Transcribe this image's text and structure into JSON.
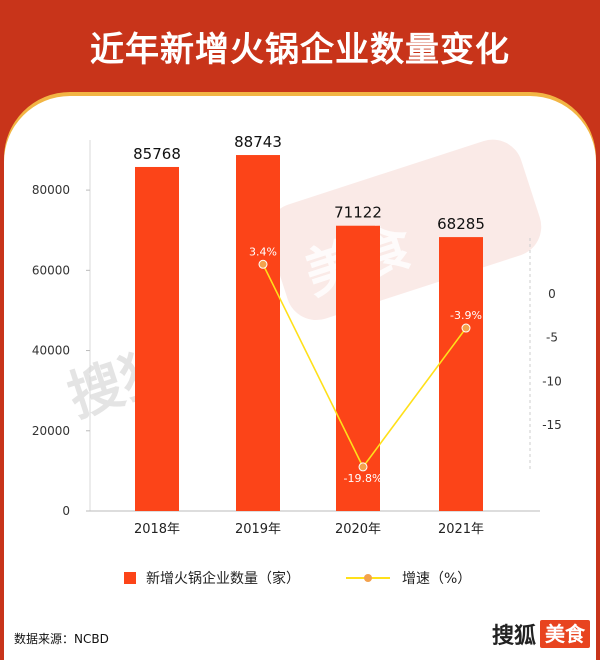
{
  "header": {
    "title": "近年新增火锅企业数量变化"
  },
  "source": "数据来源：NCBD",
  "logo": {
    "main": "搜狐",
    "box": "美食"
  },
  "colors": {
    "background": "#c8341a",
    "bar": "#fc4418",
    "line": "#ffe01a",
    "marker": "#f3a24d"
  },
  "chart_data": {
    "type": "bar",
    "categories": [
      "2018年",
      "2019年",
      "2020年",
      "2021年"
    ],
    "series": [
      {
        "name": "新增火锅企业数量（家）",
        "type": "bar",
        "axis": "left",
        "values": [
          85768,
          88743,
          71122,
          68285
        ],
        "labels": [
          "85768",
          "88743",
          "71122",
          "68285"
        ]
      },
      {
        "name": "增速（%）",
        "type": "line",
        "axis": "right",
        "values": [
          null,
          3.4,
          -19.8,
          -3.9
        ],
        "labels": [
          "",
          "3.4%",
          "-19.8%",
          "-3.9%"
        ]
      }
    ],
    "left_axis": {
      "ylim": [
        0,
        90000
      ],
      "ticks": [
        0,
        20000,
        40000,
        60000,
        80000
      ],
      "tick_labels": [
        "0",
        "20000",
        "40000",
        "60000",
        "80000"
      ]
    },
    "right_axis": {
      "ylim": [
        -20,
        6
      ],
      "ticks": [
        0,
        -5,
        -10,
        -15
      ],
      "tick_labels": [
        "0",
        "-5",
        "-10",
        "-15"
      ]
    },
    "grid": false,
    "legend_position": "bottom"
  },
  "watermark": {
    "left": "搜狐",
    "right": "美食"
  }
}
